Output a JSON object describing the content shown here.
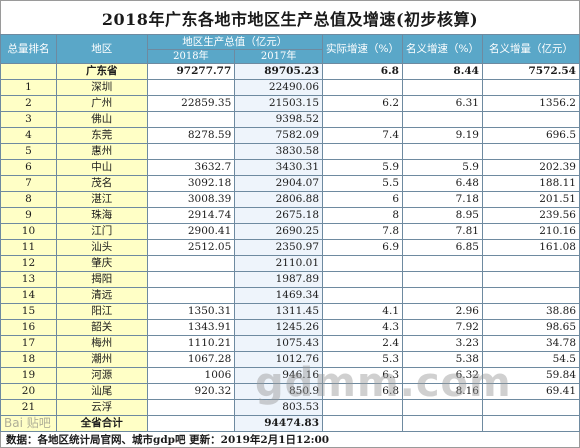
{
  "title": "2018年广东各地市地区生产总值及增速(初步核算)",
  "headers": {
    "rank": "总量排名",
    "region": "地区",
    "gdp": "地区生产总值（亿元）",
    "y2018": "2018年",
    "y2017": "2017年",
    "real_growth": "实际增速（%）",
    "nominal_growth": "名义增速（%）",
    "nominal_increase": "名义增量（亿元）"
  },
  "rows": [
    {
      "rank": "",
      "region": "广东省",
      "gdp2018": "97277.77",
      "gdp2017": "89705.23",
      "real": "6.8",
      "nominal": "8.44",
      "increase": "7572.54"
    },
    {
      "rank": "1",
      "region": "深圳",
      "gdp2018": "",
      "gdp2017": "22490.06",
      "real": "",
      "nominal": "",
      "increase": ""
    },
    {
      "rank": "2",
      "region": "广州",
      "gdp2018": "22859.35",
      "gdp2017": "21503.15",
      "real": "6.2",
      "nominal": "6.31",
      "increase": "1356.2"
    },
    {
      "rank": "3",
      "region": "佛山",
      "gdp2018": "",
      "gdp2017": "9398.52",
      "real": "",
      "nominal": "",
      "increase": ""
    },
    {
      "rank": "4",
      "region": "东莞",
      "gdp2018": "8278.59",
      "gdp2017": "7582.09",
      "real": "7.4",
      "nominal": "9.19",
      "increase": "696.5"
    },
    {
      "rank": "5",
      "region": "惠州",
      "gdp2018": "",
      "gdp2017": "3830.58",
      "real": "",
      "nominal": "",
      "increase": ""
    },
    {
      "rank": "6",
      "region": "中山",
      "gdp2018": "3632.7",
      "gdp2017": "3430.31",
      "real": "5.9",
      "nominal": "5.9",
      "increase": "202.39"
    },
    {
      "rank": "7",
      "region": "茂名",
      "gdp2018": "3092.18",
      "gdp2017": "2904.07",
      "real": "5.5",
      "nominal": "6.48",
      "increase": "188.11"
    },
    {
      "rank": "8",
      "region": "湛江",
      "gdp2018": "3008.39",
      "gdp2017": "2806.88",
      "real": "6",
      "nominal": "7.18",
      "increase": "201.51"
    },
    {
      "rank": "9",
      "region": "珠海",
      "gdp2018": "2914.74",
      "gdp2017": "2675.18",
      "real": "8",
      "nominal": "8.95",
      "increase": "239.56"
    },
    {
      "rank": "10",
      "region": "江门",
      "gdp2018": "2900.41",
      "gdp2017": "2690.25",
      "real": "7.8",
      "nominal": "7.81",
      "increase": "210.16"
    },
    {
      "rank": "11",
      "region": "汕头",
      "gdp2018": "2512.05",
      "gdp2017": "2350.97",
      "real": "6.9",
      "nominal": "6.85",
      "increase": "161.08"
    },
    {
      "rank": "12",
      "region": "肇庆",
      "gdp2018": "",
      "gdp2017": "2110.01",
      "real": "",
      "nominal": "",
      "increase": ""
    },
    {
      "rank": "13",
      "region": "揭阳",
      "gdp2018": "",
      "gdp2017": "1987.89",
      "real": "",
      "nominal": "",
      "increase": ""
    },
    {
      "rank": "14",
      "region": "清远",
      "gdp2018": "",
      "gdp2017": "1469.34",
      "real": "",
      "nominal": "",
      "increase": ""
    },
    {
      "rank": "15",
      "region": "阳江",
      "gdp2018": "1350.31",
      "gdp2017": "1311.45",
      "real": "4.1",
      "nominal": "2.96",
      "increase": "38.86"
    },
    {
      "rank": "16",
      "region": "韶关",
      "gdp2018": "1343.91",
      "gdp2017": "1245.26",
      "real": "4.3",
      "nominal": "7.92",
      "increase": "98.65"
    },
    {
      "rank": "17",
      "region": "梅州",
      "gdp2018": "1110.21",
      "gdp2017": "1075.43",
      "real": "2.4",
      "nominal": "3.23",
      "increase": "34.78"
    },
    {
      "rank": "18",
      "region": "潮州",
      "gdp2018": "1067.28",
      "gdp2017": "1012.76",
      "real": "5.3",
      "nominal": "5.38",
      "increase": "54.5"
    },
    {
      "rank": "19",
      "region": "河源",
      "gdp2018": "1006",
      "gdp2017": "946.16",
      "real": "6.3",
      "nominal": "6.32",
      "increase": "59.84"
    },
    {
      "rank": "20",
      "region": "汕尾",
      "gdp2018": "920.32",
      "gdp2017": "850.9",
      "real": "6.8",
      "nominal": "8.16",
      "increase": "69.41"
    },
    {
      "rank": "21",
      "region": "云浮",
      "gdp2018": "",
      "gdp2017": "803.53",
      "real": "",
      "nominal": "",
      "increase": ""
    },
    {
      "rank": "",
      "region": "全省合计",
      "gdp2018": "",
      "gdp2017": "94474.83",
      "real": "",
      "nominal": "",
      "increase": ""
    }
  ],
  "footer": "数据：各地区统计局官网、城市gdp吧  更新：2019年2月1日12:00",
  "watermark": "gdmm.com",
  "baidu_mark": "Bai 贴吧"
}
